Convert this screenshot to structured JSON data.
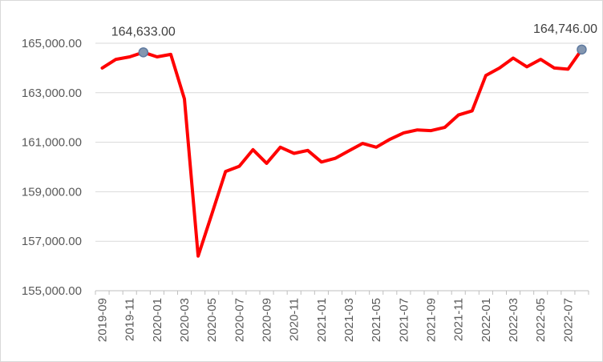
{
  "chart_data": {
    "type": "line",
    "title": "",
    "xlabel": "",
    "ylabel": "",
    "ylim": [
      155000,
      165000
    ],
    "y_ticks": [
      155000,
      157000,
      159000,
      161000,
      163000,
      165000
    ],
    "y_tick_labels": [
      "155,000.00",
      "157,000.00",
      "159,000.00",
      "161,000.00",
      "163,000.00",
      "165,000.00"
    ],
    "x_tick_labels": [
      "2019-09",
      "2019-11",
      "2020-01",
      "2020-03",
      "2020-05",
      "2020-07",
      "2020-09",
      "2020-11",
      "2021-01",
      "2021-03",
      "2021-05",
      "2021-07",
      "2021-09",
      "2021-11",
      "2022-01",
      "2022-03",
      "2022-05",
      "2022-07"
    ],
    "grid": "horizontal",
    "legend": "none",
    "series": [
      {
        "color": "#ff0000",
        "x": [
          "2019-09",
          "2019-10",
          "2019-11",
          "2019-12",
          "2020-01",
          "2020-02",
          "2020-03",
          "2020-04",
          "2020-05",
          "2020-06",
          "2020-07",
          "2020-08",
          "2020-09",
          "2020-10",
          "2020-11",
          "2020-12",
          "2021-01",
          "2021-02",
          "2021-03",
          "2021-04",
          "2021-05",
          "2021-06",
          "2021-07",
          "2021-08",
          "2021-09",
          "2021-10",
          "2021-11",
          "2021-12",
          "2022-01",
          "2022-02",
          "2022-03",
          "2022-04",
          "2022-05",
          "2022-06",
          "2022-07",
          "2022-08"
        ],
        "values": [
          164000,
          164350,
          164450,
          164633,
          164450,
          164550,
          162750,
          156400,
          158100,
          159820,
          160030,
          160700,
          160150,
          160800,
          160550,
          160670,
          160200,
          160350,
          160650,
          160950,
          160800,
          161120,
          161380,
          161500,
          161470,
          161600,
          162100,
          162270,
          163700,
          164000,
          164400,
          164050,
          164350,
          164000,
          163950,
          164746
        ]
      }
    ],
    "annotations": [
      {
        "x": "2019-12",
        "value": 164633,
        "label": "164,633.00"
      },
      {
        "x": "2022-08",
        "value": 164746,
        "label": "164,746.00"
      }
    ],
    "marker_color": "#8497b0"
  }
}
